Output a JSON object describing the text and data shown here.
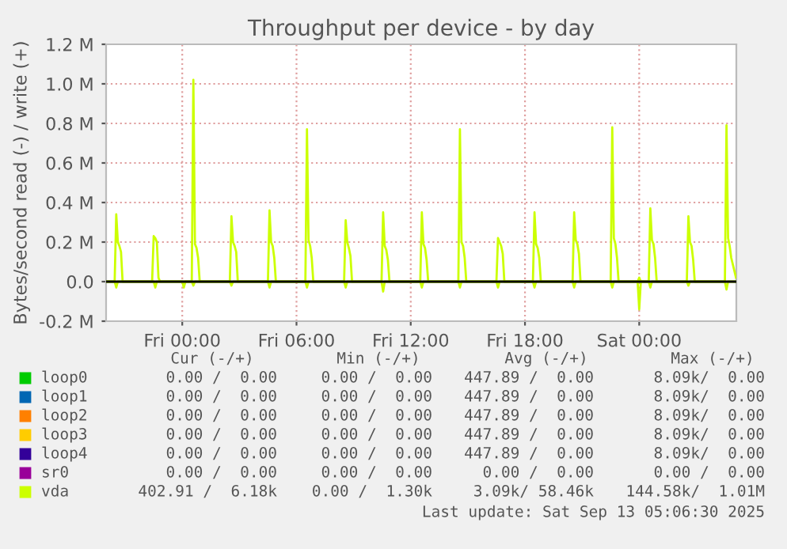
{
  "chart_data": {
    "type": "line",
    "title": "Throughput per device - by day",
    "ylabel": "Bytes/second read (-) / write (+)",
    "xlim": [
      "2025-09-11T20:00",
      "2025-09-13T05:06"
    ],
    "xticks": [
      {
        "value": "2025-09-12T00:00",
        "label": "Fri 00:00"
      },
      {
        "value": "2025-09-12T06:00",
        "label": "Fri 06:00"
      },
      {
        "value": "2025-09-12T12:00",
        "label": "Fri 12:00"
      },
      {
        "value": "2025-09-12T18:00",
        "label": "Fri 18:00"
      },
      {
        "value": "2025-09-13T00:00",
        "label": "Sat 00:00"
      }
    ],
    "ylim": [
      -200000,
      1200000
    ],
    "yticks": [
      {
        "value": -200000,
        "label": "-0.2 M"
      },
      {
        "value": 0,
        "label": "0.0"
      },
      {
        "value": 200000,
        "label": "0.2 M"
      },
      {
        "value": 400000,
        "label": "0.4 M"
      },
      {
        "value": 600000,
        "label": "0.6 M"
      },
      {
        "value": 800000,
        "label": "0.8 M"
      },
      {
        "value": 1000000,
        "label": "1.0 M"
      },
      {
        "value": 1200000,
        "label": "1.2 M"
      }
    ],
    "grid": true,
    "legend": "bottom",
    "marker": "none",
    "line_style": "solid",
    "ref_lines": [
      {
        "axis": "y",
        "value": 0,
        "color": "#000000"
      }
    ],
    "series": [
      {
        "name": "loop0",
        "color": "#00cc00"
      },
      {
        "name": "loop1",
        "color": "#0066b3"
      },
      {
        "name": "loop2",
        "color": "#ff8000"
      },
      {
        "name": "loop3",
        "color": "#ffcc00"
      },
      {
        "name": "loop4",
        "color": "#330099"
      },
      {
        "name": "sr0",
        "color": "#990099"
      },
      {
        "name": "vda",
        "color": "#ccff00",
        "x": [
          "2025-09-11T20:00",
          "2025-09-11T20:27",
          "2025-09-11T20:32",
          "2025-09-11T20:37",
          "2025-09-11T20:42",
          "2025-09-11T20:47",
          "2025-09-11T20:52",
          "2025-09-11T22:25",
          "2025-09-11T22:30",
          "2025-09-11T22:35",
          "2025-09-11T22:40",
          "2025-09-11T22:45",
          "2025-09-11T22:50",
          "2025-09-12T00:30",
          "2025-09-12T00:35",
          "2025-09-12T00:40",
          "2025-09-12T00:45",
          "2025-09-12T00:50",
          "2025-09-12T00:55",
          "2025-09-12T02:30",
          "2025-09-12T02:35",
          "2025-09-12T02:40",
          "2025-09-12T02:45",
          "2025-09-12T02:50",
          "2025-09-12T02:55",
          "2025-09-12T04:30",
          "2025-09-12T04:35",
          "2025-09-12T04:40",
          "2025-09-12T04:45",
          "2025-09-12T04:50",
          "2025-09-12T04:55",
          "2025-09-12T06:28",
          "2025-09-12T06:33",
          "2025-09-12T06:38",
          "2025-09-12T06:43",
          "2025-09-12T06:48",
          "2025-09-12T06:53",
          "2025-09-12T08:30",
          "2025-09-12T08:35",
          "2025-09-12T08:40",
          "2025-09-12T08:45",
          "2025-09-12T08:50",
          "2025-09-12T08:55",
          "2025-09-12T10:28",
          "2025-09-12T10:33",
          "2025-09-12T10:38",
          "2025-09-12T10:43",
          "2025-09-12T10:48",
          "2025-09-12T10:53",
          "2025-09-12T12:30",
          "2025-09-12T12:35",
          "2025-09-12T12:40",
          "2025-09-12T12:45",
          "2025-09-12T12:50",
          "2025-09-12T12:55",
          "2025-09-12T14:30",
          "2025-09-12T14:35",
          "2025-09-12T14:40",
          "2025-09-12T14:45",
          "2025-09-12T14:50",
          "2025-09-12T14:55",
          "2025-09-12T16:30",
          "2025-09-12T16:35",
          "2025-09-12T16:40",
          "2025-09-12T16:45",
          "2025-09-12T16:50",
          "2025-09-12T16:55",
          "2025-09-12T18:25",
          "2025-09-12T18:30",
          "2025-09-12T18:35",
          "2025-09-12T18:40",
          "2025-09-12T18:45",
          "2025-09-12T18:50",
          "2025-09-12T20:30",
          "2025-09-12T20:35",
          "2025-09-12T20:40",
          "2025-09-12T20:45",
          "2025-09-12T20:50",
          "2025-09-12T20:55",
          "2025-09-12T22:30",
          "2025-09-12T22:35",
          "2025-09-12T22:40",
          "2025-09-12T22:45",
          "2025-09-12T22:50",
          "2025-09-12T22:55",
          "2025-09-12T23:55",
          "2025-09-13T00:00",
          "2025-09-13T00:05",
          "2025-09-13T00:30",
          "2025-09-13T00:35",
          "2025-09-13T00:40",
          "2025-09-13T00:45",
          "2025-09-13T00:50",
          "2025-09-13T00:55",
          "2025-09-13T02:30",
          "2025-09-13T02:35",
          "2025-09-13T02:40",
          "2025-09-13T02:45",
          "2025-09-13T02:50",
          "2025-09-13T02:55",
          "2025-09-13T04:30",
          "2025-09-13T04:35",
          "2025-09-13T04:40",
          "2025-09-13T04:45",
          "2025-09-13T04:50",
          "2025-09-13T05:05"
        ],
        "values": [
          0,
          0,
          340000,
          200000,
          180000,
          150000,
          0,
          0,
          230000,
          220000,
          200000,
          20000,
          0,
          0,
          1020000,
          190000,
          170000,
          120000,
          0,
          0,
          330000,
          200000,
          180000,
          150000,
          0,
          0,
          360000,
          200000,
          180000,
          120000,
          0,
          0,
          770000,
          210000,
          180000,
          120000,
          0,
          0,
          310000,
          200000,
          170000,
          130000,
          0,
          0,
          350000,
          180000,
          160000,
          110000,
          0,
          0,
          350000,
          190000,
          170000,
          110000,
          0,
          0,
          770000,
          200000,
          180000,
          120000,
          0,
          0,
          220000,
          200000,
          180000,
          140000,
          0,
          0,
          350000,
          190000,
          170000,
          120000,
          0,
          0,
          350000,
          210000,
          190000,
          140000,
          0,
          0,
          780000,
          220000,
          190000,
          120000,
          0,
          0,
          20000,
          0,
          0,
          370000,
          210000,
          190000,
          120000,
          0,
          0,
          330000,
          200000,
          180000,
          110000,
          0,
          0,
          790000,
          220000,
          180000,
          120000,
          20000
        ]
      },
      {
        "color": "#ccff00",
        "x": [
          "2025-09-11T20:00",
          "2025-09-11T20:27",
          "2025-09-11T20:32",
          "2025-09-11T20:37",
          "2025-09-11T22:30",
          "2025-09-11T22:35",
          "2025-09-11T22:40",
          "2025-09-12T00:00",
          "2025-09-12T00:05",
          "2025-09-12T00:10",
          "2025-09-12T00:30",
          "2025-09-12T00:35",
          "2025-09-12T00:40",
          "2025-09-12T02:30",
          "2025-09-12T02:35",
          "2025-09-12T02:40",
          "2025-09-12T04:30",
          "2025-09-12T04:35",
          "2025-09-12T04:40",
          "2025-09-12T06:28",
          "2025-09-12T06:33",
          "2025-09-12T06:38",
          "2025-09-12T08:30",
          "2025-09-12T08:35",
          "2025-09-12T08:40",
          "2025-09-12T10:28",
          "2025-09-12T10:33",
          "2025-09-12T10:38",
          "2025-09-12T12:30",
          "2025-09-12T12:35",
          "2025-09-12T12:40",
          "2025-09-12T14:30",
          "2025-09-12T14:35",
          "2025-09-12T14:40",
          "2025-09-12T16:30",
          "2025-09-12T16:35",
          "2025-09-12T16:40",
          "2025-09-12T18:25",
          "2025-09-12T18:30",
          "2025-09-12T18:35",
          "2025-09-12T20:30",
          "2025-09-12T20:35",
          "2025-09-12T20:40",
          "2025-09-12T22:30",
          "2025-09-12T22:35",
          "2025-09-12T22:40",
          "2025-09-12T23:55",
          "2025-09-13T00:00",
          "2025-09-13T00:05",
          "2025-09-13T00:30",
          "2025-09-13T00:35",
          "2025-09-13T00:40",
          "2025-09-13T02:30",
          "2025-09-13T02:35",
          "2025-09-13T02:40",
          "2025-09-13T04:30",
          "2025-09-13T04:35",
          "2025-09-13T04:40",
          "2025-09-13T05:05"
        ],
        "values": [
          0,
          0,
          -30000,
          0,
          0,
          -30000,
          0,
          0,
          -30000,
          0,
          0,
          -20000,
          0,
          0,
          -20000,
          0,
          0,
          -30000,
          0,
          0,
          -30000,
          0,
          0,
          -30000,
          0,
          0,
          -50000,
          0,
          0,
          -30000,
          0,
          0,
          -30000,
          0,
          0,
          -30000,
          0,
          0,
          -30000,
          0,
          0,
          -30000,
          0,
          0,
          -30000,
          0,
          0,
          -140000,
          0,
          0,
          -30000,
          0,
          0,
          -20000,
          0,
          0,
          -40000,
          0,
          0
        ]
      }
    ],
    "annotations": [
      "Cur (-/+)",
      "Min (-/+)",
      "Avg (-/+)",
      "Max (-/+)",
      "0.00 /  0.00",
      "0.00 /  0.00",
      "447.89 /  0.00",
      "8.09k/  0.00",
      "0.00 /  0.00",
      "0.00 /  0.00",
      "447.89 /  0.00",
      "8.09k/  0.00",
      "0.00 /  0.00",
      "0.00 /  0.00",
      "447.89 /  0.00",
      "8.09k/  0.00",
      "0.00 /  0.00",
      "0.00 /  0.00",
      "447.89 /  0.00",
      "8.09k/  0.00",
      "0.00 /  0.00",
      "0.00 /  0.00",
      "447.89 /  0.00",
      "8.09k/  0.00",
      "0.00 /  0.00",
      "0.00 /  0.00",
      "0.00 /  0.00",
      "0.00 /  0.00",
      "402.91 /  6.18k",
      "0.00 /  1.30k",
      "3.09k/ 58.46k",
      "144.58k/  1.01M",
      "Last update: Sat Sep 13 05:06:30 2025"
    ]
  }
}
